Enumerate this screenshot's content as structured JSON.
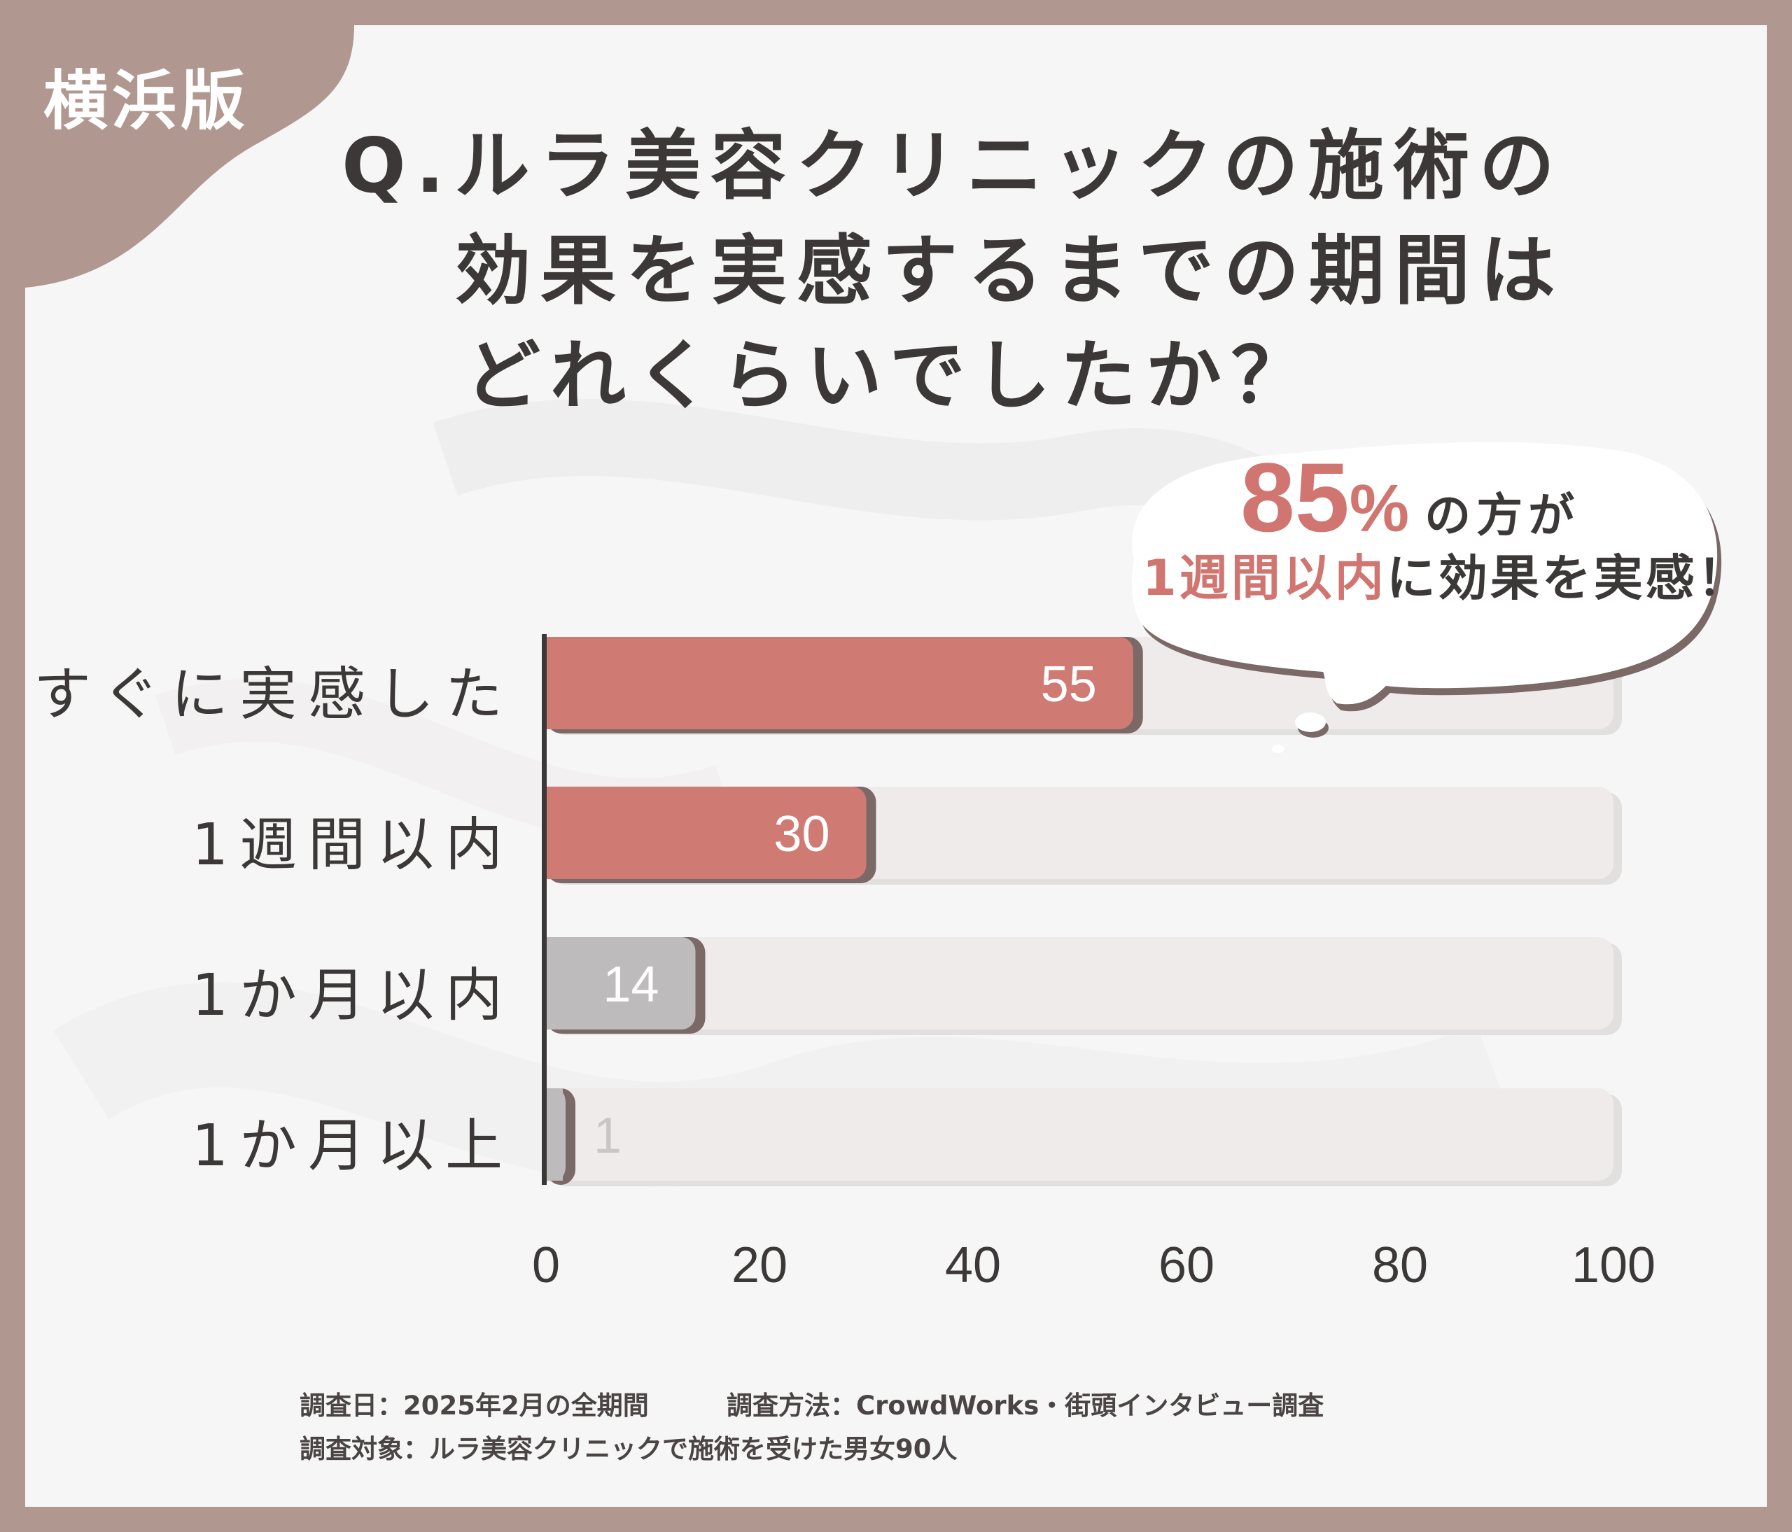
{
  "edition_label": "横浜版",
  "title": {
    "line1": "Q.ルラ美容クリニックの施術の",
    "line2": "効果を実感するまでの期間は",
    "line3": "どれくらいでしたか？"
  },
  "callout": {
    "percent_value": "85",
    "percent_symbol": "%",
    "text_after_percent": "の方が",
    "highlight": "1週間以内",
    "text_after_highlight": "に効果を実感！"
  },
  "chart_data": {
    "type": "bar",
    "orientation": "horizontal",
    "categories": [
      "すぐに実感した",
      "1週間以内",
      "1か月以内",
      "1か月以上"
    ],
    "values": [
      55,
      30,
      14,
      1
    ],
    "value_labels": [
      "55",
      "30",
      "14",
      "1"
    ],
    "xlim": [
      0,
      100
    ],
    "xticks": [
      "0",
      "20",
      "40",
      "60",
      "80",
      "100"
    ],
    "tick_values": [
      0,
      20,
      40,
      60,
      80,
      100
    ],
    "grid": false,
    "legend": "none",
    "colors": {
      "highlight_bar": "#d07a74",
      "muted_bar": "#bdbbbb",
      "track": "#efebeb",
      "bar_shadow": "#7a6966"
    },
    "highlighted": [
      true,
      true,
      false,
      false
    ]
  },
  "footnotes": {
    "date": "調査日：2025年2月の全期間",
    "method": "調査方法：CrowdWorks・街頭インタビュー調査",
    "target": "調査対象：ルラ美容クリニックで施術を受けた男女90人"
  }
}
